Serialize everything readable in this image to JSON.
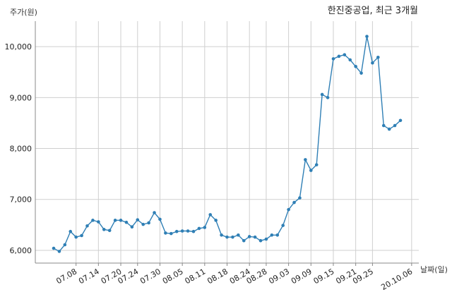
{
  "chart_data": {
    "type": "line",
    "title": "한진중공업, 최근 3개월",
    "ylabel": "주가(원)",
    "xlabel": "날짜(일)",
    "ylim": [
      5750,
      10500
    ],
    "yticks": [
      6000,
      7000,
      8000,
      9000,
      10000
    ],
    "ytick_labels": [
      "6,000",
      "7,000",
      "8,000",
      "9,000",
      "10,000"
    ],
    "xtick_labels": [
      "07.08",
      "07.14",
      "07.20",
      "07.24",
      "07.30",
      "08.05",
      "08.11",
      "08.18",
      "08.24",
      "08.28",
      "09.03",
      "09.09",
      "09.15",
      "09.21",
      "09.25",
      "20.10.06"
    ],
    "xtick_positions": [
      4,
      8,
      12,
      15,
      19,
      23,
      27,
      31,
      35,
      38,
      42,
      46,
      50,
      54,
      57,
      64
    ],
    "grid": true,
    "line_color": "#2f7fb5",
    "series": [
      {
        "values": [
          6040,
          5980,
          6110,
          6370,
          6260,
          6290,
          6480,
          6590,
          6560,
          6410,
          6390,
          6590,
          6590,
          6550,
          6460,
          6600,
          6510,
          6540,
          6740,
          6610,
          6340,
          6330,
          6370,
          6380,
          6380,
          6370,
          6430,
          6450,
          6700,
          6590,
          6300,
          6260,
          6260,
          6300,
          6190,
          6270,
          6260,
          6190,
          6220,
          6300,
          6300,
          6490,
          6800,
          6940,
          7030,
          7780,
          7570,
          7680,
          9060,
          9000,
          9760,
          9810,
          9840,
          9740,
          9610,
          9480,
          10200,
          9680,
          9790,
          8450,
          8380,
          8450,
          8550
        ]
      }
    ]
  }
}
